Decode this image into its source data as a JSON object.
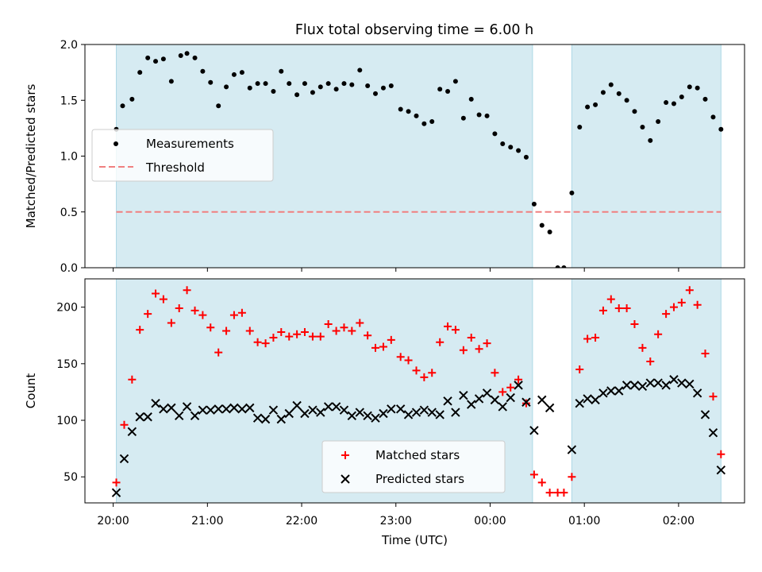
{
  "title": "Flux total observing time = 6.00 h",
  "colors": {
    "shade": "#add8e6",
    "measurement": "#000000",
    "threshold": "#f08080",
    "matched": "#ff0000",
    "predicted": "#000000"
  },
  "chart_data": [
    {
      "type": "scatter",
      "title": "Flux total observing time = 6.00 h",
      "ylabel": "Matched/Predicted stars",
      "xlim": [
        19.7,
        26.7
      ],
      "ylim": [
        0,
        2.0
      ],
      "yticks": [
        0.0,
        0.5,
        1.0,
        1.5,
        2.0
      ],
      "ytick_labels": [
        "0.0",
        "0.5",
        "1.0",
        "1.5",
        "2.0"
      ],
      "shaded_intervals": [
        [
          20.033,
          24.45
        ],
        [
          24.867,
          26.45
        ]
      ],
      "legend": {
        "position": "center-left",
        "entries": [
          "Measurements",
          "Threshold"
        ]
      },
      "threshold": 0.5,
      "series": [
        {
          "name": "Measurements",
          "x": [
            20.033,
            20.1,
            20.2,
            20.283,
            20.367,
            20.45,
            20.533,
            20.617,
            20.717,
            20.783,
            20.867,
            20.95,
            21.033,
            21.117,
            21.2,
            21.283,
            21.367,
            21.45,
            21.533,
            21.617,
            21.7,
            21.783,
            21.867,
            21.95,
            22.033,
            22.117,
            22.2,
            22.283,
            22.367,
            22.45,
            22.533,
            22.617,
            22.7,
            22.783,
            22.867,
            22.95,
            23.05,
            23.133,
            23.217,
            23.3,
            23.383,
            23.467,
            23.55,
            23.633,
            23.717,
            23.8,
            23.883,
            23.967,
            24.05,
            24.133,
            24.217,
            24.3,
            24.383,
            24.467,
            24.55,
            24.633,
            24.717,
            24.783,
            24.867,
            24.95,
            25.033,
            25.117,
            25.2,
            25.283,
            25.367,
            25.45,
            25.533,
            25.617,
            25.7,
            25.783,
            25.867,
            25.95,
            26.033,
            26.117,
            26.2,
            26.283,
            26.367,
            26.45
          ],
          "y": [
            1.24,
            1.45,
            1.51,
            1.75,
            1.88,
            1.85,
            1.87,
            1.67,
            1.9,
            1.92,
            1.88,
            1.76,
            1.66,
            1.45,
            1.62,
            1.73,
            1.75,
            1.61,
            1.65,
            1.65,
            1.58,
            1.76,
            1.65,
            1.55,
            1.65,
            1.57,
            1.62,
            1.65,
            1.6,
            1.65,
            1.64,
            1.77,
            1.63,
            1.56,
            1.61,
            1.63,
            1.42,
            1.4,
            1.36,
            1.29,
            1.31,
            1.6,
            1.58,
            1.67,
            1.34,
            1.51,
            1.37,
            1.36,
            1.2,
            1.11,
            1.08,
            1.05,
            0.99,
            0.57,
            0.38,
            0.32,
            0.0,
            0.0,
            0.67,
            1.26,
            1.44,
            1.46,
            1.57,
            1.64,
            1.56,
            1.5,
            1.4,
            1.26,
            1.14,
            1.31,
            1.48,
            1.47,
            1.53,
            1.62,
            1.61,
            1.51,
            1.35,
            1.24
          ]
        }
      ]
    },
    {
      "type": "scatter",
      "xlabel": "Time (UTC)",
      "ylabel": "Count",
      "xlim": [
        19.7,
        26.7
      ],
      "ylim": [
        27,
        225
      ],
      "yticks": [
        50,
        100,
        150,
        200
      ],
      "ytick_labels": [
        "50",
        "100",
        "150",
        "200"
      ],
      "xticks": [
        20,
        21,
        22,
        23,
        24,
        25,
        26
      ],
      "xtick_labels": [
        "20:00",
        "21:00",
        "22:00",
        "23:00",
        "00:00",
        "01:00",
        "02:00"
      ],
      "shaded_intervals": [
        [
          20.033,
          24.45
        ],
        [
          24.867,
          26.45
        ]
      ],
      "legend": {
        "position": "lower-center",
        "entries": [
          "Matched stars",
          "Predicted stars"
        ]
      },
      "series": [
        {
          "name": "Matched stars",
          "x": [
            20.033,
            20.117,
            20.2,
            20.283,
            20.367,
            20.45,
            20.533,
            20.617,
            20.7,
            20.783,
            20.867,
            20.95,
            21.033,
            21.117,
            21.2,
            21.283,
            21.367,
            21.45,
            21.533,
            21.617,
            21.7,
            21.783,
            21.867,
            21.95,
            22.033,
            22.117,
            22.2,
            22.283,
            22.367,
            22.45,
            22.533,
            22.617,
            22.7,
            22.783,
            22.867,
            22.95,
            23.05,
            23.133,
            23.217,
            23.3,
            23.383,
            23.467,
            23.55,
            23.633,
            23.717,
            23.8,
            23.883,
            23.967,
            24.05,
            24.133,
            24.217,
            24.3,
            24.383,
            24.467,
            24.55,
            24.633,
            24.717,
            24.783,
            24.867,
            24.95,
            25.033,
            25.117,
            25.2,
            25.283,
            25.367,
            25.45,
            25.533,
            25.617,
            25.7,
            25.783,
            25.867,
            25.95,
            26.033,
            26.117,
            26.2,
            26.283,
            26.367,
            26.45
          ],
          "y": [
            45,
            96,
            136,
            180,
            194,
            212,
            207,
            186,
            199,
            215,
            197,
            193,
            182,
            160,
            179,
            193,
            195,
            179,
            169,
            168,
            173,
            178,
            174,
            176,
            178,
            174,
            174,
            185,
            179,
            182,
            179,
            186,
            175,
            164,
            165,
            171,
            156,
            153,
            144,
            138,
            142,
            169,
            183,
            180,
            162,
            173,
            163,
            168,
            142,
            125,
            129,
            136,
            115,
            52,
            45,
            36,
            36,
            36,
            50,
            145,
            172,
            173,
            197,
            207,
            199,
            199,
            185,
            164,
            152,
            176,
            194,
            200,
            204,
            215,
            202,
            159,
            121,
            70
          ]
        },
        {
          "name": "Predicted stars",
          "x": [
            20.033,
            20.117,
            20.2,
            20.283,
            20.367,
            20.45,
            20.533,
            20.617,
            20.7,
            20.783,
            20.867,
            20.95,
            21.033,
            21.117,
            21.2,
            21.283,
            21.367,
            21.45,
            21.533,
            21.617,
            21.7,
            21.783,
            21.867,
            21.95,
            22.033,
            22.117,
            22.2,
            22.283,
            22.367,
            22.45,
            22.533,
            22.617,
            22.7,
            22.783,
            22.867,
            22.95,
            23.05,
            23.133,
            23.217,
            23.3,
            23.383,
            23.467,
            23.55,
            23.633,
            23.717,
            23.8,
            23.883,
            23.967,
            24.05,
            24.133,
            24.217,
            24.3,
            24.383,
            24.467,
            24.55,
            24.633,
            24.867,
            24.95,
            25.033,
            25.117,
            25.2,
            25.283,
            25.367,
            25.45,
            25.533,
            25.617,
            25.7,
            25.783,
            25.867,
            25.95,
            26.033,
            26.117,
            26.2,
            26.283,
            26.367,
            26.45
          ],
          "y": [
            36,
            66,
            90,
            103,
            103,
            115,
            110,
            111,
            104,
            112,
            104,
            109,
            109,
            110,
            110,
            111,
            110,
            111,
            102,
            101,
            109,
            101,
            106,
            113,
            106,
            109,
            107,
            112,
            112,
            109,
            104,
            107,
            104,
            102,
            106,
            110,
            110,
            105,
            107,
            109,
            107,
            105,
            117,
            107,
            122,
            114,
            119,
            124,
            118,
            112,
            120,
            131,
            116,
            91,
            118,
            111,
            74,
            115,
            119,
            118,
            124,
            126,
            126,
            131,
            131,
            130,
            133,
            133,
            131,
            136,
            133,
            132,
            124,
            105,
            89,
            56
          ]
        }
      ]
    }
  ]
}
